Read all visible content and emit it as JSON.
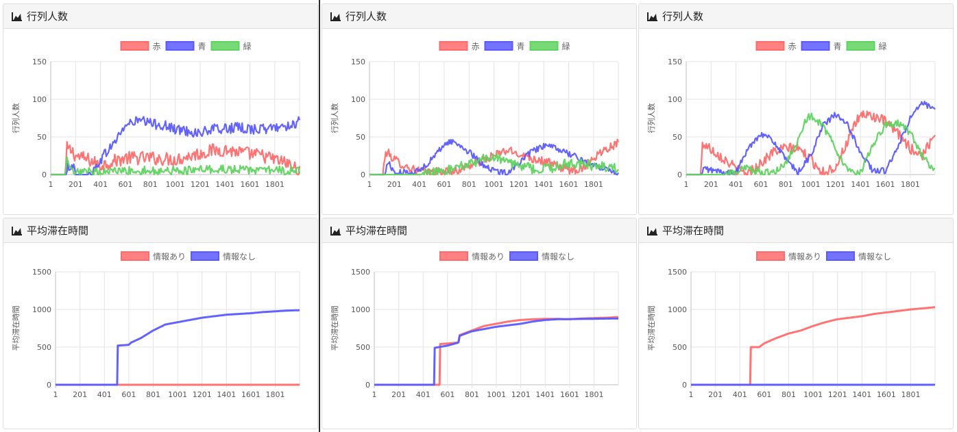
{
  "panels": [
    {
      "title": "行列人数",
      "icon": "area-chart-icon"
    },
    {
      "title": "行列人数",
      "icon": "area-chart-icon"
    },
    {
      "title": "行列人数",
      "icon": "area-chart-icon"
    },
    {
      "title": "平均滞在時間",
      "icon": "area-chart-icon"
    },
    {
      "title": "平均滞在時間",
      "icon": "area-chart-icon"
    },
    {
      "title": "平均滞在時間",
      "icon": "area-chart-icon"
    }
  ],
  "colors": {
    "red": "#ff6b6b",
    "blue": "#5a5aff",
    "green": "#5fd35f"
  },
  "chart_data": [
    {
      "type": "line",
      "ylabel": "行列人数",
      "ylim": [
        0,
        150
      ],
      "xlim": [
        1,
        2000
      ],
      "yticks": [
        0,
        50,
        100,
        150
      ],
      "xticks": [
        "1",
        "201",
        "401",
        "601",
        "801",
        "1001",
        "1201",
        "1401",
        "1601",
        "1801"
      ],
      "legend_position": "top",
      "grid": true,
      "series": [
        {
          "name": "赤",
          "color": "#ff6b6b",
          "noise": 9,
          "x": [
            1,
            120,
            130,
            180,
            200,
            300,
            400,
            450,
            600,
            800,
            1000,
            1200,
            1300,
            1400,
            1500,
            1700,
            1900,
            1990,
            2000
          ],
          "y": [
            0,
            0,
            35,
            30,
            25,
            20,
            12,
            15,
            22,
            22,
            20,
            28,
            32,
            33,
            30,
            25,
            15,
            6,
            10
          ]
        },
        {
          "name": "青",
          "color": "#5a5aff",
          "noise": 7,
          "x": [
            1,
            130,
            140,
            180,
            200,
            300,
            350,
            400,
            500,
            600,
            700,
            800,
            900,
            1000,
            1100,
            1200,
            1300,
            1500,
            1700,
            1900,
            2000
          ],
          "y": [
            0,
            0,
            12,
            12,
            0,
            0,
            5,
            20,
            40,
            65,
            72,
            68,
            66,
            60,
            58,
            55,
            60,
            62,
            60,
            65,
            70
          ]
        },
        {
          "name": "緑",
          "color": "#5fd35f",
          "noise": 6,
          "x": [
            1,
            120,
            130,
            150,
            170,
            200,
            400,
            600,
            800,
            1000,
            1200,
            1400,
            1600,
            1800,
            2000
          ],
          "y": [
            0,
            0,
            18,
            12,
            3,
            2,
            4,
            5,
            5,
            5,
            6,
            7,
            6,
            5,
            6
          ]
        }
      ]
    },
    {
      "type": "line",
      "ylabel": "行列人数",
      "ylim": [
        0,
        150
      ],
      "xlim": [
        1,
        2000
      ],
      "yticks": [
        0,
        50,
        100,
        150
      ],
      "xticks": [
        "1",
        "201",
        "401",
        "601",
        "801",
        "1001",
        "1201",
        "1401",
        "1601",
        "1801"
      ],
      "legend_position": "top",
      "grid": true,
      "series": [
        {
          "name": "赤",
          "color": "#ff6b6b",
          "noise": 6,
          "x": [
            1,
            110,
            120,
            140,
            200,
            300,
            400,
            500,
            700,
            800,
            900,
            1000,
            1100,
            1200,
            1300,
            1400,
            1500,
            1600,
            1700,
            1800,
            1900,
            2000
          ],
          "y": [
            0,
            0,
            20,
            30,
            20,
            10,
            5,
            3,
            5,
            12,
            18,
            25,
            32,
            28,
            22,
            18,
            12,
            6,
            8,
            22,
            35,
            42
          ]
        },
        {
          "name": "青",
          "color": "#5a5aff",
          "noise": 4,
          "x": [
            1,
            130,
            140,
            160,
            200,
            300,
            400,
            500,
            600,
            650,
            700,
            800,
            900,
            1000,
            1100,
            1200,
            1300,
            1400,
            1500,
            1600,
            1700,
            1800,
            1900,
            2000
          ],
          "y": [
            0,
            0,
            15,
            15,
            2,
            3,
            5,
            20,
            40,
            44,
            42,
            30,
            15,
            5,
            2,
            15,
            30,
            38,
            35,
            28,
            20,
            12,
            8,
            2
          ]
        },
        {
          "name": "緑",
          "color": "#5fd35f",
          "noise": 7,
          "x": [
            1,
            400,
            500,
            600,
            700,
            800,
            900,
            1000,
            1100,
            1200,
            1300,
            1400,
            1500,
            1600,
            1700,
            1800,
            1900,
            2000
          ],
          "y": [
            0,
            0,
            2,
            5,
            8,
            15,
            20,
            22,
            18,
            12,
            8,
            8,
            10,
            15,
            15,
            12,
            10,
            8
          ]
        }
      ]
    },
    {
      "type": "line",
      "ylabel": "行列人数",
      "ylim": [
        0,
        150
      ],
      "xlim": [
        1,
        2000
      ],
      "yticks": [
        0,
        50,
        100,
        150
      ],
      "xticks": [
        "1",
        "201",
        "401",
        "601",
        "801",
        "1001",
        "1201",
        "1401",
        "1601",
        "1801"
      ],
      "legend_position": "top",
      "grid": true,
      "series": [
        {
          "name": "赤",
          "color": "#ff6b6b",
          "noise": 7,
          "x": [
            1,
            120,
            130,
            150,
            250,
            350,
            420,
            500,
            600,
            700,
            800,
            900,
            1000,
            1100,
            1200,
            1300,
            1400,
            1500,
            1600,
            1700,
            1800,
            1900,
            2000
          ],
          "y": [
            0,
            0,
            40,
            40,
            28,
            15,
            5,
            2,
            15,
            30,
            35,
            35,
            20,
            3,
            10,
            45,
            80,
            78,
            70,
            55,
            35,
            25,
            55
          ]
        },
        {
          "name": "青",
          "color": "#5a5aff",
          "noise": 4,
          "x": [
            1,
            130,
            140,
            200,
            300,
            400,
            500,
            600,
            700,
            800,
            900,
            1000,
            1100,
            1200,
            1300,
            1400,
            1500,
            1600,
            1700,
            1800,
            1900,
            2000
          ],
          "y": [
            0,
            0,
            8,
            6,
            3,
            2,
            35,
            55,
            45,
            20,
            3,
            25,
            65,
            80,
            65,
            30,
            5,
            5,
            35,
            75,
            95,
            85
          ]
        },
        {
          "name": "緑",
          "color": "#5fd35f",
          "noise": 5,
          "x": [
            1,
            300,
            400,
            500,
            600,
            700,
            800,
            900,
            950,
            1000,
            1100,
            1200,
            1300,
            1400,
            1500,
            1600,
            1700,
            1800,
            1900,
            2000
          ],
          "y": [
            0,
            0,
            5,
            8,
            3,
            2,
            15,
            45,
            70,
            78,
            65,
            35,
            5,
            3,
            40,
            65,
            68,
            55,
            25,
            3
          ]
        }
      ]
    },
    {
      "type": "line",
      "ylabel": "平均滞在時間",
      "ylim": [
        0,
        1500
      ],
      "xlim": [
        1,
        2000
      ],
      "yticks": [
        0,
        500,
        1000,
        1500
      ],
      "xticks": [
        "1",
        "201",
        "401",
        "601",
        "801",
        "1001",
        "1201",
        "1401",
        "1601",
        "1801"
      ],
      "legend_position": "top",
      "grid": true,
      "series": [
        {
          "name": "情報あり",
          "color": "#ff6b6b",
          "noise": 0,
          "x": [
            1,
            2000
          ],
          "y": [
            0,
            0
          ]
        },
        {
          "name": "情報なし",
          "color": "#5a5aff",
          "noise": 0,
          "x": [
            1,
            509,
            510,
            600,
            620,
            700,
            800,
            900,
            1000,
            1100,
            1200,
            1300,
            1400,
            1500,
            1600,
            1700,
            1800,
            1900,
            2000
          ],
          "y": [
            0,
            0,
            520,
            530,
            560,
            620,
            720,
            800,
            830,
            860,
            890,
            910,
            930,
            940,
            950,
            965,
            975,
            985,
            990
          ]
        }
      ]
    },
    {
      "type": "line",
      "ylabel": "平均滞在時間",
      "ylim": [
        0,
        1500
      ],
      "xlim": [
        1,
        2000
      ],
      "yticks": [
        0,
        500,
        1000,
        1500
      ],
      "xticks": [
        "1",
        "201",
        "401",
        "601",
        "801",
        "1001",
        "1201",
        "1401",
        "1601",
        "1801"
      ],
      "legend_position": "top",
      "grid": true,
      "series": [
        {
          "name": "情報あり",
          "color": "#ff6b6b",
          "noise": 0,
          "x": [
            1,
            539,
            540,
            690,
            700,
            800,
            900,
            1000,
            1100,
            1200,
            1300,
            1400,
            1500,
            1600,
            1700,
            1800,
            1900,
            2000
          ],
          "y": [
            0,
            0,
            540,
            560,
            660,
            720,
            780,
            810,
            840,
            860,
            870,
            875,
            875,
            870,
            880,
            885,
            890,
            900
          ]
        },
        {
          "name": "情報なし",
          "color": "#5a5aff",
          "noise": 0,
          "x": [
            1,
            494,
            495,
            600,
            690,
            700,
            800,
            900,
            1000,
            1100,
            1200,
            1300,
            1400,
            1500,
            1600,
            1700,
            1800,
            1900,
            2000
          ],
          "y": [
            0,
            0,
            490,
            520,
            560,
            650,
            710,
            740,
            770,
            790,
            810,
            840,
            860,
            870,
            872,
            874,
            876,
            878,
            880
          ]
        }
      ]
    },
    {
      "type": "line",
      "ylabel": "平均滞在時間",
      "ylim": [
        0,
        1500
      ],
      "xlim": [
        1,
        2000
      ],
      "yticks": [
        0,
        500,
        1000,
        1500
      ],
      "xticks": [
        "1",
        "201",
        "401",
        "601",
        "801",
        "1001",
        "1201",
        "1401",
        "1601",
        "1801"
      ],
      "legend_position": "top",
      "grid": true,
      "series": [
        {
          "name": "情報あり",
          "color": "#ff6b6b",
          "noise": 0,
          "x": [
            1,
            489,
            490,
            560,
            600,
            700,
            800,
            900,
            1000,
            1100,
            1200,
            1300,
            1400,
            1500,
            1600,
            1700,
            1800,
            1900,
            2000
          ],
          "y": [
            0,
            0,
            500,
            500,
            550,
            620,
            680,
            720,
            780,
            830,
            870,
            890,
            910,
            940,
            960,
            980,
            1000,
            1015,
            1030
          ]
        },
        {
          "name": "情報なし",
          "color": "#5a5aff",
          "noise": 0,
          "x": [
            1,
            2000
          ],
          "y": [
            0,
            0
          ]
        }
      ]
    }
  ]
}
